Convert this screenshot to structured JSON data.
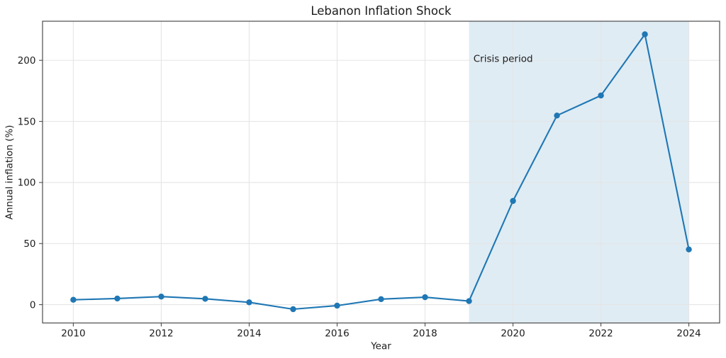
{
  "chart_data": {
    "type": "line",
    "title": "Lebanon Inflation Shock",
    "xlabel": "Year",
    "ylabel": "Annual inflation (%)",
    "x": [
      2010,
      2011,
      2012,
      2013,
      2014,
      2015,
      2016,
      2017,
      2018,
      2019,
      2020,
      2021,
      2022,
      2023,
      2024
    ],
    "y": [
      4.0,
      5.0,
      6.6,
      4.8,
      1.9,
      -3.7,
      -0.8,
      4.5,
      6.1,
      2.9,
      84.9,
      154.8,
      171.2,
      221.3,
      45.2
    ],
    "xticks": {
      "values": [
        2010,
        2012,
        2014,
        2016,
        2018,
        2020,
        2022,
        2024
      ],
      "labels": [
        "2010",
        "2012",
        "2014",
        "2016",
        "2018",
        "2020",
        "2022",
        "2024"
      ]
    },
    "yticks": {
      "values": [
        0,
        50,
        100,
        150,
        200
      ],
      "labels": [
        "0",
        "50",
        "100",
        "150",
        "200"
      ]
    },
    "xlim": [
      2009.3,
      2024.7
    ],
    "ylim": [
      -15,
      232
    ],
    "grid": true,
    "legend": false,
    "line_color": "#1f77b4",
    "marker": "circle",
    "shaded_region": {
      "x_start": 2019,
      "x_end": 2024,
      "fill_color": "#1f77b4",
      "opacity": 0.14
    },
    "annotation": {
      "text": "Crisis period",
      "x": 2019.1,
      "y": 198.7
    },
    "style_colors": {
      "grid": "#e5e5e5",
      "spine": "#4c4c4c",
      "text": "#1c1c1c",
      "background": "#ffffff"
    }
  }
}
